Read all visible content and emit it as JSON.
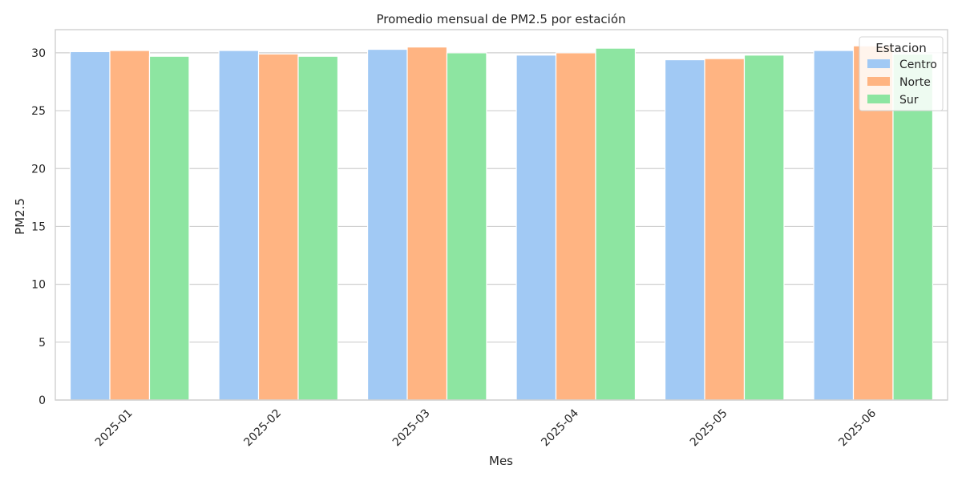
{
  "chart_data": {
    "type": "bar",
    "title": "Promedio mensual de PM2.5 por estación",
    "xlabel": "Mes",
    "ylabel": "PM2.5",
    "categories": [
      "2025-01",
      "2025-02",
      "2025-03",
      "2025-04",
      "2025-05",
      "2025-06"
    ],
    "ylim": [
      0,
      32
    ],
    "yticks": [
      0,
      5,
      10,
      15,
      20,
      25,
      30
    ],
    "grid": "horizontal",
    "legend": {
      "title": "Estacion",
      "placement": "top-right"
    },
    "series": [
      {
        "name": "Centro",
        "color": "#a1c9f4",
        "values": [
          30.1,
          30.2,
          30.3,
          29.8,
          29.4,
          30.2
        ]
      },
      {
        "name": "Norte",
        "color": "#ffb482",
        "values": [
          30.2,
          29.9,
          30.5,
          30.0,
          29.5,
          30.6
        ]
      },
      {
        "name": "Sur",
        "color": "#8de5a1",
        "values": [
          29.7,
          29.7,
          30.0,
          30.4,
          29.8,
          29.9
        ]
      }
    ]
  }
}
